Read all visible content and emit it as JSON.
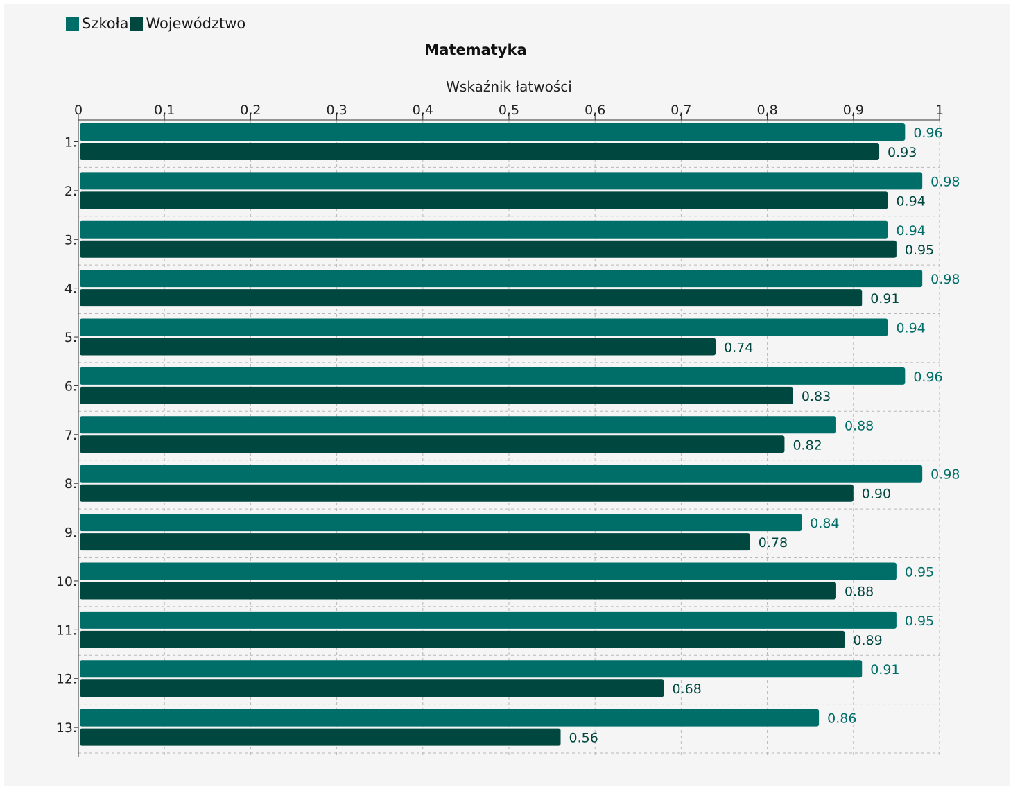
{
  "chart_data": {
    "type": "bar",
    "orientation": "horizontal",
    "title": "Matematyka",
    "xlabel": "Wskaźnik łatwości",
    "ylabel": "",
    "xlim": [
      0,
      1
    ],
    "x_ticks": [
      "0",
      "0,1",
      "0,2",
      "0,3",
      "0,4",
      "0,5",
      "0,6",
      "0,7",
      "0,8",
      "0,9",
      "1"
    ],
    "x_tick_values": [
      0,
      0.1,
      0.2,
      0.3,
      0.4,
      0.5,
      0.6,
      0.7,
      0.8,
      0.9,
      1
    ],
    "categories": [
      "1.",
      "2.",
      "3.",
      "4.",
      "5.",
      "6.",
      "7.",
      "8.",
      "9.",
      "10.",
      "11.",
      "12.",
      "13."
    ],
    "series": [
      {
        "name": "Szkoła",
        "color": "#006e68",
        "label_color": "#006e68",
        "values": [
          0.96,
          0.98,
          0.94,
          0.98,
          0.94,
          0.96,
          0.88,
          0.98,
          0.84,
          0.95,
          0.95,
          0.91,
          0.86
        ],
        "value_labels": [
          "0.96",
          "0.98",
          "0.94",
          "0.98",
          "0.94",
          "0.96",
          "0.88",
          "0.98",
          "0.84",
          "0.95",
          "0.95",
          "0.91",
          "0.86"
        ]
      },
      {
        "name": "Województwo",
        "color": "#00473f",
        "label_color": "#00473f",
        "values": [
          0.93,
          0.94,
          0.95,
          0.91,
          0.74,
          0.83,
          0.82,
          0.9,
          0.78,
          0.88,
          0.89,
          0.68,
          0.56
        ],
        "value_labels": [
          "0.93",
          "0.94",
          "0.95",
          "0.91",
          "0.74",
          "0.83",
          "0.82",
          "0.90",
          "0.78",
          "0.88",
          "0.89",
          "0.68",
          "0.56"
        ]
      }
    ],
    "legend_position": "top-left",
    "grid": true,
    "grid_style": "dashed",
    "background": "#f5f5f5"
  }
}
